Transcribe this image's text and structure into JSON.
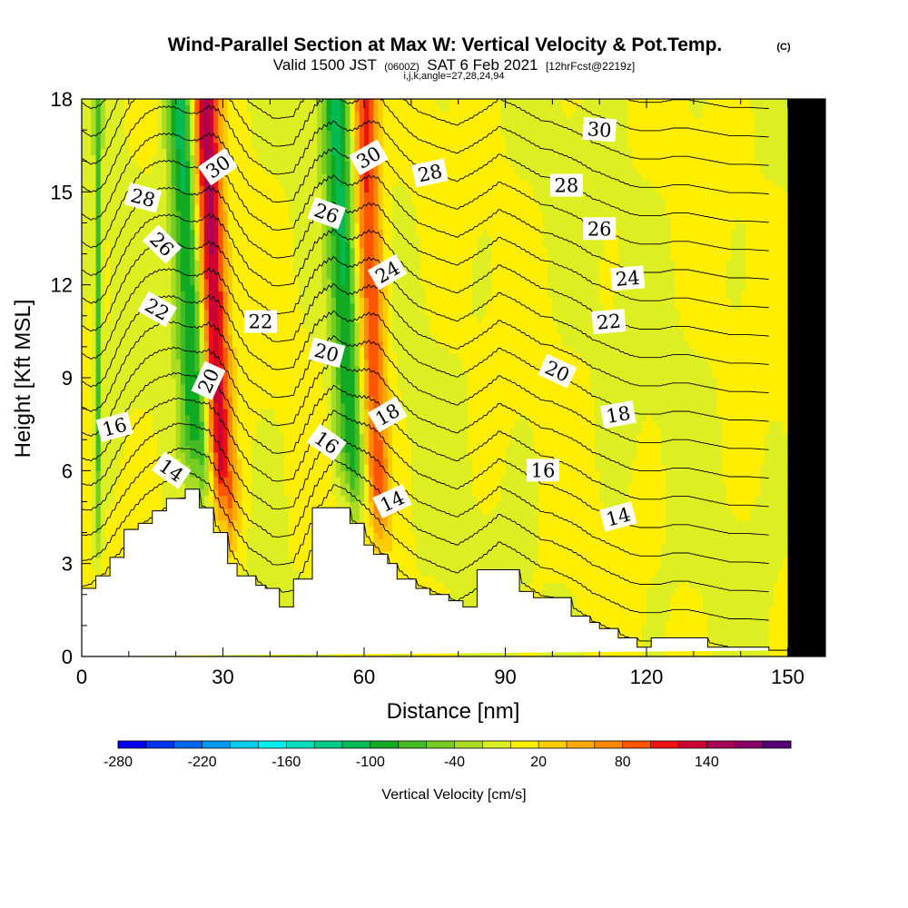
{
  "chart_data": {
    "type": "heatmap",
    "title": "Wind-Parallel Section at Max W: Vertical Velocity & Pot.Temp.",
    "title_mark": "(C)",
    "subtitle_valid": "Valid 1500 JST",
    "subtitle_utc": "(0600Z)",
    "subtitle_date": "SAT 6 Feb 2021",
    "subtitle_fcst": "[12hrFcst@2219z]",
    "subtitle_grid": "i,j,k,angle=27,28,24,94",
    "xlabel": "Distance [nm]",
    "ylabel": "Height [Kft MSL]",
    "xlim": [
      0,
      158
    ],
    "ylim": [
      0,
      18
    ],
    "x_ticks": [
      "0",
      "30",
      "60",
      "90",
      "120",
      "150"
    ],
    "y_ticks": [
      "0",
      "3",
      "6",
      "9",
      "12",
      "15",
      "18"
    ],
    "colorbar": {
      "label": "Vertical Velocity [cm/s]",
      "min": -280,
      "max": 180,
      "step": 20,
      "tick_labels": [
        "-280",
        "-220",
        "-160",
        "-100",
        "-40",
        "20",
        "80",
        "140"
      ],
      "colors": [
        "#0000ee",
        "#0033ee",
        "#0066ee",
        "#0099ee",
        "#00ccee",
        "#00eeee",
        "#00ddbb",
        "#00cc88",
        "#00bb55",
        "#11aa22",
        "#44bb22",
        "#77cc22",
        "#aadd22",
        "#ddee22",
        "#ffee00",
        "#ffcc00",
        "#ffaa00",
        "#ff8800",
        "#ff5500",
        "#ee1111",
        "#cc0033",
        "#aa0055",
        "#880066",
        "#550077"
      ]
    },
    "theta_isentropes": [
      11,
      12,
      13,
      14,
      15,
      16,
      17,
      18,
      19,
      20,
      21,
      22,
      23,
      24,
      25,
      26,
      27,
      28,
      29,
      30,
      31
    ],
    "contour_labels": [
      {
        "text": "30",
        "x": 29,
        "y": 15.8,
        "angle": -35
      },
      {
        "text": "30",
        "x": 61,
        "y": 16.1,
        "angle": -30
      },
      {
        "text": "30",
        "x": 110,
        "y": 17.0,
        "angle": 4
      },
      {
        "text": "28",
        "x": 13,
        "y": 14.8,
        "angle": 15
      },
      {
        "text": "28",
        "x": 74,
        "y": 15.6,
        "angle": -12
      },
      {
        "text": "28",
        "x": 103,
        "y": 15.2,
        "angle": 0
      },
      {
        "text": "26",
        "x": 17,
        "y": 13.3,
        "angle": 45
      },
      {
        "text": "26",
        "x": 52,
        "y": 14.3,
        "angle": 20
      },
      {
        "text": "26",
        "x": 110,
        "y": 13.8,
        "angle": 0
      },
      {
        "text": "24",
        "x": 65,
        "y": 12.4,
        "angle": -30
      },
      {
        "text": "24",
        "x": 116,
        "y": 12.2,
        "angle": -5
      },
      {
        "text": "22",
        "x": 16,
        "y": 11.2,
        "angle": 30
      },
      {
        "text": "22",
        "x": 38,
        "y": 10.8,
        "angle": 0
      },
      {
        "text": "22",
        "x": 112,
        "y": 10.8,
        "angle": -5
      },
      {
        "text": "20",
        "x": 27,
        "y": 8.9,
        "angle": -65
      },
      {
        "text": "20",
        "x": 52,
        "y": 9.8,
        "angle": 15
      },
      {
        "text": "20",
        "x": 101,
        "y": 9.2,
        "angle": 25
      },
      {
        "text": "18",
        "x": 65,
        "y": 7.8,
        "angle": -30
      },
      {
        "text": "18",
        "x": 114,
        "y": 7.8,
        "angle": -10
      },
      {
        "text": "16",
        "x": 7,
        "y": 7.4,
        "angle": -15
      },
      {
        "text": "16",
        "x": 52,
        "y": 6.9,
        "angle": 35
      },
      {
        "text": "16",
        "x": 98,
        "y": 6.0,
        "angle": 0
      },
      {
        "text": "14",
        "x": 19,
        "y": 6.0,
        "angle": 35
      },
      {
        "text": "14",
        "x": 66,
        "y": 5.0,
        "angle": -25
      },
      {
        "text": "14",
        "x": 114,
        "y": 4.5,
        "angle": -15
      }
    ],
    "terrain": {
      "x": [
        0,
        3,
        3,
        6,
        6,
        9,
        9,
        12,
        12,
        15,
        15,
        18,
        18,
        22,
        22,
        25,
        25,
        28,
        28,
        31,
        31,
        33,
        33,
        37,
        37,
        39,
        39,
        42,
        42,
        45,
        45,
        49,
        49,
        57,
        57,
        60,
        60,
        62,
        62,
        65,
        65,
        67,
        67,
        71,
        71,
        74,
        74,
        78,
        78,
        81,
        81,
        84,
        84,
        93,
        93,
        96,
        96,
        104,
        104,
        108,
        108,
        110,
        110,
        114,
        114,
        118,
        118,
        121,
        121,
        133,
        133,
        146,
        146,
        150,
        150,
        158
      ],
      "y": [
        2.2,
        2.2,
        2.6,
        2.6,
        3.2,
        3.2,
        4.1,
        4.1,
        4.3,
        4.3,
        4.7,
        4.7,
        5.1,
        5.1,
        5.4,
        5.4,
        4.8,
        4.8,
        4.0,
        4.0,
        3.0,
        3.0,
        2.6,
        2.6,
        2.3,
        2.3,
        2.2,
        2.2,
        1.6,
        1.6,
        2.5,
        2.5,
        4.8,
        4.8,
        4.3,
        4.3,
        3.6,
        3.6,
        3.3,
        3.3,
        3.0,
        3.0,
        2.5,
        2.5,
        2.2,
        2.2,
        2.0,
        2.0,
        1.8,
        1.8,
        1.6,
        1.6,
        2.8,
        2.8,
        2.1,
        2.1,
        1.9,
        1.9,
        1.3,
        1.3,
        1.1,
        1.1,
        0.9,
        0.9,
        0.6,
        0.6,
        0.3,
        0.3,
        0.6,
        0.6,
        0.3,
        0.3,
        0.2,
        0.2
      ]
    },
    "velocity_features": [
      {
        "kind": "downdraft",
        "x_top": 21,
        "x_bottom": 27,
        "width": 3.2,
        "peak": -120
      },
      {
        "kind": "updraft",
        "x_top": 26,
        "x_bottom": 31,
        "width": 3.0,
        "peak": 160
      },
      {
        "kind": "downdraft",
        "x_top": 54,
        "x_bottom": 59,
        "width": 3.0,
        "peak": -110
      },
      {
        "kind": "updraft",
        "x_top": 60,
        "x_bottom": 64,
        "width": 2.8,
        "peak": 110
      },
      {
        "kind": "downdraft",
        "x_top": 3.5,
        "x_bottom": 3.5,
        "width": 0.8,
        "peak": -70
      }
    ]
  }
}
